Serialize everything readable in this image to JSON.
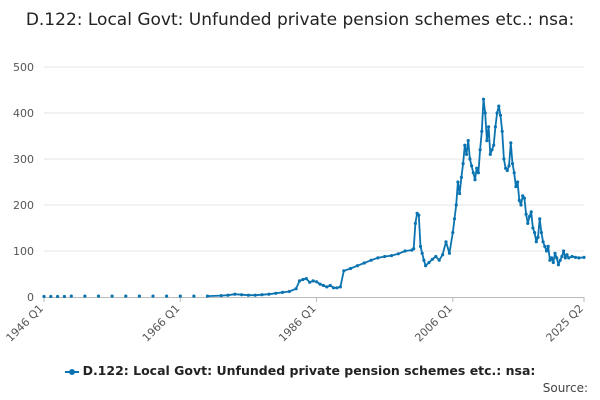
{
  "chart_data": {
    "type": "line",
    "title": "D.122: Local Govt: Unfunded private pension schemes etc.: nsa:",
    "xlabel": "",
    "ylabel": "",
    "ylim": [
      0,
      500
    ],
    "yticks": [
      0,
      100,
      200,
      300,
      400,
      500
    ],
    "xlim": [
      1946.0,
      2025.25
    ],
    "xticks": [
      {
        "value": 1946.0,
        "label": "1946 Q1"
      },
      {
        "value": 1966.0,
        "label": "1966 Q1"
      },
      {
        "value": 1986.0,
        "label": "1986 Q1"
      },
      {
        "value": 2006.0,
        "label": "2006 Q1"
      },
      {
        "value": 2025.25,
        "label": "2025 Q2"
      }
    ],
    "grid": true,
    "legend_position": "bottom",
    "series": [
      {
        "name": "D.122: Local Govt: Unfunded private pension schemes etc.: nsa:",
        "color": "#0b74b0",
        "points": [
          [
            1946.0,
            1
          ],
          [
            1947.0,
            1
          ],
          [
            1948.0,
            1
          ],
          [
            1949.0,
            1
          ],
          [
            1950.0,
            2
          ],
          [
            1952.0,
            2
          ],
          [
            1954.0,
            2
          ],
          [
            1956.0,
            2
          ],
          [
            1958.0,
            2
          ],
          [
            1960.0,
            2
          ],
          [
            1962.0,
            2
          ],
          [
            1964.0,
            2
          ],
          [
            1966.0,
            2
          ],
          [
            1968.0,
            2
          ],
          [
            1970.0,
            2
          ],
          [
            1972.0,
            3
          ],
          [
            1973.0,
            4
          ],
          [
            1974.0,
            6
          ],
          [
            1975.0,
            5
          ],
          [
            1976.0,
            4
          ],
          [
            1977.0,
            4
          ],
          [
            1978.0,
            5
          ],
          [
            1979.0,
            6
          ],
          [
            1980.0,
            8
          ],
          [
            1981.0,
            10
          ],
          [
            1982.0,
            12
          ],
          [
            1983.0,
            18
          ],
          [
            1983.5,
            35
          ],
          [
            1984.0,
            38
          ],
          [
            1984.5,
            40
          ],
          [
            1985.0,
            32
          ],
          [
            1985.5,
            35
          ],
          [
            1986.0,
            33
          ],
          [
            1986.5,
            28
          ],
          [
            1987.0,
            25
          ],
          [
            1987.5,
            22
          ],
          [
            1988.0,
            25
          ],
          [
            1988.5,
            20
          ],
          [
            1989.0,
            20
          ],
          [
            1989.5,
            22
          ],
          [
            1990.0,
            57
          ],
          [
            1991.0,
            62
          ],
          [
            1992.0,
            68
          ],
          [
            1993.0,
            74
          ],
          [
            1994.0,
            80
          ],
          [
            1995.0,
            85
          ],
          [
            1996.0,
            88
          ],
          [
            1997.0,
            90
          ],
          [
            1998.0,
            94
          ],
          [
            1999.0,
            100
          ],
          [
            2000.0,
            102
          ],
          [
            2000.25,
            105
          ],
          [
            2000.5,
            160
          ],
          [
            2000.75,
            182
          ],
          [
            2001.0,
            178
          ],
          [
            2001.25,
            110
          ],
          [
            2001.5,
            95
          ],
          [
            2001.75,
            80
          ],
          [
            2002.0,
            68
          ],
          [
            2002.5,
            75
          ],
          [
            2003.0,
            82
          ],
          [
            2003.5,
            88
          ],
          [
            2004.0,
            80
          ],
          [
            2004.5,
            92
          ],
          [
            2005.0,
            120
          ],
          [
            2005.5,
            95
          ],
          [
            2006.0,
            140
          ],
          [
            2006.25,
            170
          ],
          [
            2006.5,
            200
          ],
          [
            2006.75,
            250
          ],
          [
            2007.0,
            225
          ],
          [
            2007.25,
            260
          ],
          [
            2007.5,
            290
          ],
          [
            2007.75,
            330
          ],
          [
            2008.0,
            310
          ],
          [
            2008.25,
            340
          ],
          [
            2008.5,
            300
          ],
          [
            2008.75,
            285
          ],
          [
            2009.0,
            270
          ],
          [
            2009.25,
            255
          ],
          [
            2009.5,
            280
          ],
          [
            2009.75,
            270
          ],
          [
            2010.0,
            320
          ],
          [
            2010.25,
            360
          ],
          [
            2010.5,
            430
          ],
          [
            2010.75,
            400
          ],
          [
            2011.0,
            340
          ],
          [
            2011.25,
            370
          ],
          [
            2011.5,
            310
          ],
          [
            2011.75,
            320
          ],
          [
            2012.0,
            330
          ],
          [
            2012.25,
            370
          ],
          [
            2012.5,
            400
          ],
          [
            2012.75,
            415
          ],
          [
            2013.0,
            395
          ],
          [
            2013.25,
            360
          ],
          [
            2013.5,
            300
          ],
          [
            2013.75,
            280
          ],
          [
            2014.0,
            275
          ],
          [
            2014.25,
            285
          ],
          [
            2014.5,
            335
          ],
          [
            2014.75,
            290
          ],
          [
            2015.0,
            270
          ],
          [
            2015.25,
            240
          ],
          [
            2015.5,
            250
          ],
          [
            2015.75,
            210
          ],
          [
            2016.0,
            200
          ],
          [
            2016.25,
            220
          ],
          [
            2016.5,
            215
          ],
          [
            2016.75,
            180
          ],
          [
            2017.0,
            160
          ],
          [
            2017.25,
            175
          ],
          [
            2017.5,
            185
          ],
          [
            2017.75,
            150
          ],
          [
            2018.0,
            140
          ],
          [
            2018.25,
            120
          ],
          [
            2018.5,
            130
          ],
          [
            2018.75,
            170
          ],
          [
            2019.0,
            140
          ],
          [
            2019.25,
            120
          ],
          [
            2019.5,
            110
          ],
          [
            2019.75,
            100
          ],
          [
            2020.0,
            110
          ],
          [
            2020.25,
            80
          ],
          [
            2020.5,
            85
          ],
          [
            2020.75,
            75
          ],
          [
            2021.0,
            95
          ],
          [
            2021.25,
            85
          ],
          [
            2021.5,
            70
          ],
          [
            2021.75,
            80
          ],
          [
            2022.0,
            88
          ],
          [
            2022.25,
            100
          ],
          [
            2022.5,
            85
          ],
          [
            2022.75,
            92
          ],
          [
            2023.0,
            85
          ],
          [
            2023.5,
            88
          ],
          [
            2024.0,
            86
          ],
          [
            2024.5,
            85
          ],
          [
            2025.25,
            86
          ]
        ]
      }
    ]
  },
  "source_label": "Source:"
}
